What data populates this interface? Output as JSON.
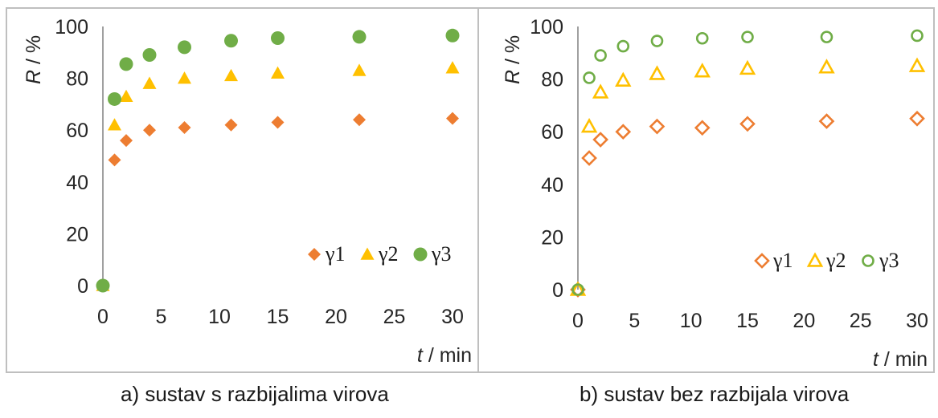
{
  "colors": {
    "gamma1": "#ED7D31",
    "gamma2": "#FFC000",
    "gamma3": "#70AD47",
    "frame": "#BFBFBF",
    "axis": "#262626"
  },
  "captions": {
    "a": "a) sustav s razbijalima virova",
    "b": "b) sustav bez razbijala virova"
  },
  "chart_data": [
    {
      "type": "scatter",
      "marker_style": "filled",
      "ylabel_var": "R",
      "ylabel_unit": " / %",
      "xlabel_var": "t",
      "xlabel_unit": " / min",
      "xlim": [
        0,
        30
      ],
      "ylim": [
        0,
        100
      ],
      "xticks": [
        0,
        5,
        10,
        15,
        20,
        25,
        30
      ],
      "yticks": [
        0,
        20,
        40,
        60,
        80,
        100
      ],
      "grid": false,
      "legend_position": "bottom-right",
      "series": [
        {
          "name": "γ1",
          "marker": "diamond",
          "color": "#ED7D31",
          "x": [
            0,
            1,
            2,
            4,
            7,
            11,
            15,
            22,
            30
          ],
          "y": [
            0,
            48.5,
            56,
            60,
            61,
            62,
            63,
            64,
            64.5
          ]
        },
        {
          "name": "γ2",
          "marker": "triangle",
          "color": "#FFC000",
          "x": [
            0,
            1,
            2,
            4,
            7,
            11,
            15,
            22,
            30
          ],
          "y": [
            0,
            62,
            73,
            78,
            80,
            81,
            82,
            83,
            84
          ]
        },
        {
          "name": "γ3",
          "marker": "circle",
          "color": "#70AD47",
          "x": [
            0,
            1,
            2,
            4,
            7,
            11,
            15,
            22,
            30
          ],
          "y": [
            0,
            72,
            85.5,
            89,
            92,
            94.5,
            95.5,
            96,
            96.5
          ]
        }
      ]
    },
    {
      "type": "scatter",
      "marker_style": "hollow",
      "ylabel_var": "R",
      "ylabel_unit": " / %",
      "xlabel_var": "t",
      "xlabel_unit": " / min",
      "xlim": [
        0,
        30
      ],
      "ylim": [
        0,
        100
      ],
      "xticks": [
        0,
        5,
        10,
        15,
        20,
        25,
        30
      ],
      "yticks": [
        0,
        20,
        40,
        60,
        80,
        100
      ],
      "grid": false,
      "legend_position": "bottom-right",
      "series": [
        {
          "name": "γ1",
          "marker": "diamond",
          "color": "#ED7D31",
          "x": [
            0,
            1,
            2,
            4,
            7,
            11,
            15,
            22,
            30
          ],
          "y": [
            0,
            50,
            57,
            60,
            62,
            61.5,
            63,
            64,
            65
          ]
        },
        {
          "name": "γ2",
          "marker": "triangle",
          "color": "#FFC000",
          "x": [
            0,
            1,
            2,
            4,
            7,
            11,
            15,
            22,
            30
          ],
          "y": [
            0,
            62,
            75,
            79.5,
            82,
            83,
            84,
            84.5,
            85
          ]
        },
        {
          "name": "γ3",
          "marker": "circle",
          "color": "#70AD47",
          "x": [
            0,
            1,
            2,
            4,
            7,
            11,
            15,
            22,
            30
          ],
          "y": [
            0,
            80.5,
            89,
            92.5,
            94.5,
            95.5,
            96,
            96,
            96.5
          ]
        }
      ]
    }
  ]
}
